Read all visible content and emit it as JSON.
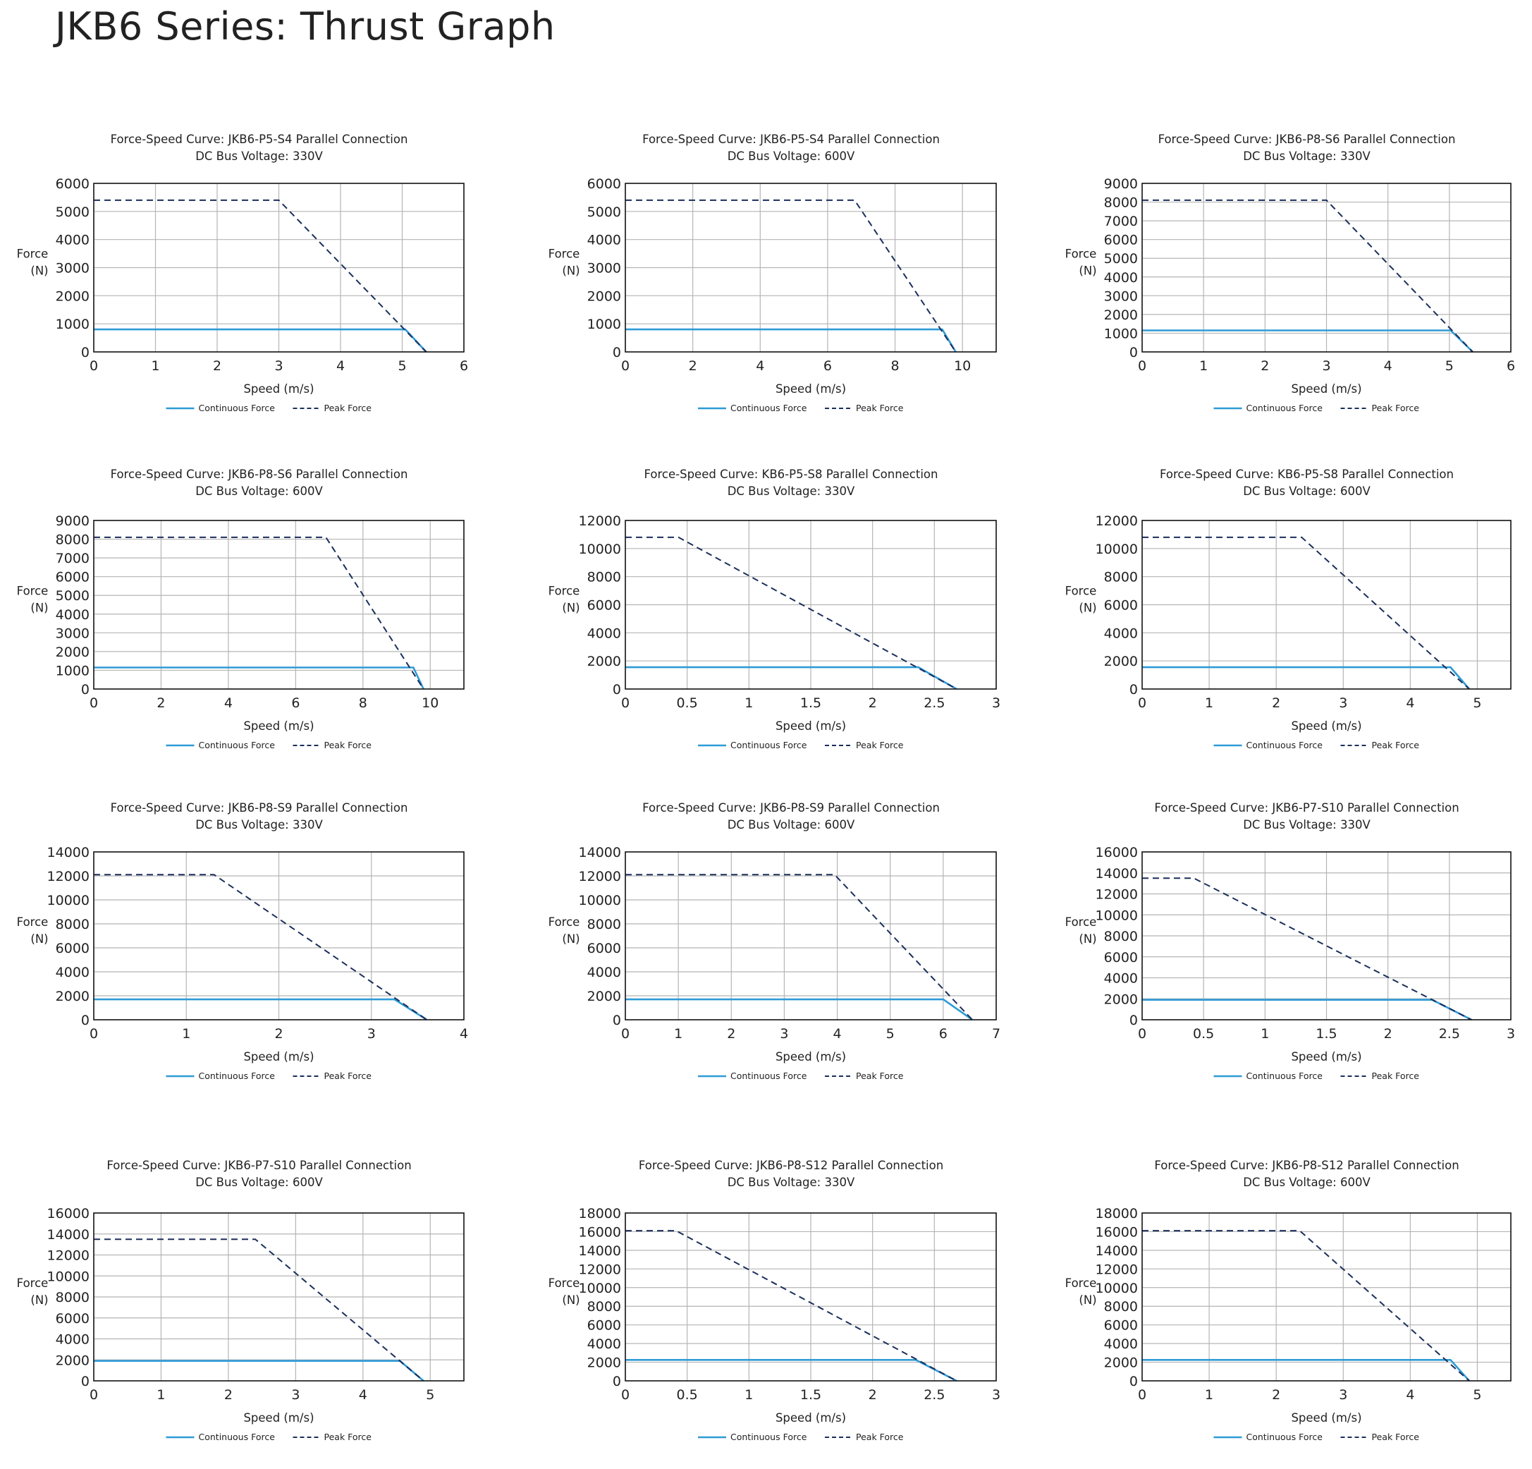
{
  "page": {
    "title": "JKB6 Series: Thrust Graph"
  },
  "colors": {
    "continuous": "#2e9bd6",
    "peak": "#1b2f5b",
    "grid": "#b5b5b5",
    "frame": "#111111"
  },
  "chart_data": [
    {
      "type": "line",
      "title": "Force-Speed Curve: JKB6-P5-S4 Parallel Connection",
      "subtitle": "DC Bus Voltage: 330V",
      "xlabel": "Speed (m/s)",
      "ylabel": "Force (N)",
      "xlim": [
        0,
        6
      ],
      "ylim": [
        0,
        6000
      ],
      "xticks": [
        "0",
        "1",
        "2",
        "3",
        "4",
        "5",
        "6"
      ],
      "yticks": [
        "0",
        "1000",
        "2000",
        "3000",
        "4000",
        "5000",
        "6000"
      ],
      "grid": true,
      "legend": "bottom",
      "series": [
        {
          "name": "Continuous Force",
          "style": "solid",
          "x": [
            0,
            5.05,
            5.39
          ],
          "y": [
            800,
            800,
            0
          ]
        },
        {
          "name": "Peak Force",
          "style": "dashed",
          "x": [
            0,
            3.0,
            5.39
          ],
          "y": [
            5400,
            5400,
            0
          ]
        }
      ]
    },
    {
      "type": "line",
      "title": "Force-Speed Curve: JKB6-P5-S4 Parallel Connection",
      "subtitle": "DC Bus Voltage: 600V",
      "xlabel": "Speed (m/s)",
      "ylabel": "Force (N)",
      "xlim": [
        0,
        11
      ],
      "ylim": [
        0,
        6000
      ],
      "xticks": [
        "0",
        "2",
        "4",
        "6",
        "8",
        "10"
      ],
      "yticks": [
        "0",
        "1000",
        "2000",
        "3000",
        "4000",
        "5000",
        "6000"
      ],
      "grid": true,
      "legend": "bottom",
      "series": [
        {
          "name": "Continuous Force",
          "style": "solid",
          "x": [
            0,
            9.4,
            9.8
          ],
          "y": [
            800,
            800,
            0
          ]
        },
        {
          "name": "Peak Force",
          "style": "dashed",
          "x": [
            0,
            6.8,
            9.8
          ],
          "y": [
            5400,
            5400,
            0
          ]
        }
      ]
    },
    {
      "type": "line",
      "title": "Force-Speed Curve: JKB6-P8-S6 Parallel Connection",
      "subtitle": "DC Bus Voltage: 330V",
      "xlabel": "Speed (m/s)",
      "ylabel": "Force (N)",
      "xlim": [
        0,
        6
      ],
      "ylim": [
        0,
        9000
      ],
      "xticks": [
        "0",
        "1",
        "2",
        "3",
        "4",
        "5",
        "6"
      ],
      "yticks": [
        "0",
        "1000",
        "2000",
        "3000",
        "4000",
        "5000",
        "6000",
        "7000",
        "8000",
        "9000"
      ],
      "grid": true,
      "legend": "bottom",
      "series": [
        {
          "name": "Continuous Force",
          "style": "solid",
          "x": [
            0,
            5.02,
            5.38
          ],
          "y": [
            1150,
            1150,
            0
          ]
        },
        {
          "name": "Peak Force",
          "style": "dashed",
          "x": [
            0,
            3.0,
            5.38
          ],
          "y": [
            8100,
            8100,
            0
          ]
        }
      ]
    },
    {
      "type": "line",
      "title": "Force-Speed Curve: JKB6-P8-S6 Parallel Connection",
      "subtitle": "DC Bus Voltage: 600V",
      "xlabel": "Speed (m/s)",
      "ylabel": "Force (N)",
      "xlim": [
        0,
        11
      ],
      "ylim": [
        0,
        9000
      ],
      "xticks": [
        "0",
        "2",
        "4",
        "6",
        "8",
        "10"
      ],
      "yticks": [
        "0",
        "1000",
        "2000",
        "3000",
        "4000",
        "5000",
        "6000",
        "7000",
        "8000",
        "9000"
      ],
      "grid": true,
      "legend": "bottom",
      "series": [
        {
          "name": "Continuous Force",
          "style": "solid",
          "x": [
            0,
            9.5,
            9.8
          ],
          "y": [
            1150,
            1150,
            0
          ]
        },
        {
          "name": "Peak Force",
          "style": "dashed",
          "x": [
            0,
            6.9,
            9.8
          ],
          "y": [
            8100,
            8100,
            0
          ]
        }
      ]
    },
    {
      "type": "line",
      "title": "Force-Speed Curve: KB6-P5-S8 Parallel Connection",
      "subtitle": "DC Bus Voltage: 330V",
      "xlabel": "Speed (m/s)",
      "ylabel": "Force (N)",
      "xlim": [
        0,
        3
      ],
      "ylim": [
        0,
        12000
      ],
      "xticks": [
        "0",
        "0.5",
        "1",
        "1.5",
        "2",
        "2.5",
        "3"
      ],
      "yticks": [
        "0",
        "2000",
        "4000",
        "6000",
        "8000",
        "10000",
        "12000"
      ],
      "grid": true,
      "legend": "bottom",
      "series": [
        {
          "name": "Continuous Force",
          "style": "solid",
          "x": [
            0,
            2.37,
            2.68
          ],
          "y": [
            1550,
            1550,
            0
          ]
        },
        {
          "name": "Peak Force",
          "style": "dashed",
          "x": [
            0,
            0.43,
            2.68
          ],
          "y": [
            10800,
            10800,
            0
          ]
        }
      ]
    },
    {
      "type": "line",
      "title": "Force-Speed Curve: KB6-P5-S8 Parallel Connection",
      "subtitle": "DC Bus Voltage: 600V",
      "xlabel": "Speed (m/s)",
      "ylabel": "Force (N)",
      "xlim": [
        0,
        5.5
      ],
      "ylim": [
        0,
        12000
      ],
      "xticks": [
        "0",
        "1",
        "2",
        "3",
        "4",
        "5"
      ],
      "yticks": [
        "0",
        "2000",
        "4000",
        "6000",
        "8000",
        "10000",
        "12000"
      ],
      "grid": true,
      "legend": "bottom",
      "series": [
        {
          "name": "Continuous Force",
          "style": "solid",
          "x": [
            0,
            4.6,
            4.88
          ],
          "y": [
            1550,
            1550,
            0
          ]
        },
        {
          "name": "Peak Force",
          "style": "dashed",
          "x": [
            0,
            2.38,
            4.88
          ],
          "y": [
            10800,
            10800,
            0
          ]
        }
      ]
    },
    {
      "type": "line",
      "title": "Force-Speed Curve: JKB6-P8-S9 Parallel Connection",
      "subtitle": "DC Bus Voltage: 330V",
      "xlabel": "Speed (m/s)",
      "ylabel": "Force (N)",
      "xlim": [
        0,
        4
      ],
      "ylim": [
        0,
        14000
      ],
      "xticks": [
        "0",
        "1",
        "2",
        "3",
        "4"
      ],
      "yticks": [
        "0",
        "2000",
        "4000",
        "6000",
        "8000",
        "10000",
        "12000",
        "14000"
      ],
      "grid": true,
      "legend": "bottom",
      "series": [
        {
          "name": "Continuous Force",
          "style": "solid",
          "x": [
            0,
            3.25,
            3.6
          ],
          "y": [
            1700,
            1700,
            0
          ]
        },
        {
          "name": "Peak Force",
          "style": "dashed",
          "x": [
            0,
            1.3,
            3.6
          ],
          "y": [
            12100,
            12100,
            0
          ]
        }
      ]
    },
    {
      "type": "line",
      "title": "Force-Speed Curve: JKB6-P8-S9 Parallel Connection",
      "subtitle": "DC Bus Voltage: 600V",
      "xlabel": "Speed (m/s)",
      "ylabel": "Force (N)",
      "xlim": [
        0,
        7
      ],
      "ylim": [
        0,
        14000
      ],
      "xticks": [
        "0",
        "1",
        "2",
        "3",
        "4",
        "5",
        "6",
        "7"
      ],
      "yticks": [
        "0",
        "2000",
        "4000",
        "6000",
        "8000",
        "10000",
        "12000",
        "14000"
      ],
      "grid": true,
      "legend": "bottom",
      "series": [
        {
          "name": "Continuous Force",
          "style": "solid",
          "x": [
            0,
            6.0,
            6.55
          ],
          "y": [
            1700,
            1700,
            0
          ]
        },
        {
          "name": "Peak Force",
          "style": "dashed",
          "x": [
            0,
            3.95,
            6.55
          ],
          "y": [
            12100,
            12100,
            0
          ]
        }
      ]
    },
    {
      "type": "line",
      "title": "Force-Speed Curve: JKB6-P7-S10 Parallel Connection",
      "subtitle": "DC Bus Voltage: 330V",
      "xlabel": "Speed (m/s)",
      "ylabel": "Force (N)",
      "xlim": [
        0,
        3
      ],
      "ylim": [
        0,
        16000
      ],
      "xticks": [
        "0",
        "0.5",
        "1",
        "1.5",
        "2",
        "2.5",
        "3"
      ],
      "yticks": [
        "0",
        "2000",
        "4000",
        "6000",
        "8000",
        "10000",
        "12000",
        "14000",
        "16000"
      ],
      "grid": true,
      "legend": "bottom",
      "series": [
        {
          "name": "Continuous Force",
          "style": "solid",
          "x": [
            0,
            2.36,
            2.68
          ],
          "y": [
            1900,
            1900,
            0
          ]
        },
        {
          "name": "Peak Force",
          "style": "dashed",
          "x": [
            0,
            0.42,
            2.68
          ],
          "y": [
            13500,
            13500,
            0
          ]
        }
      ]
    },
    {
      "type": "line",
      "title": "Force-Speed Curve: JKB6-P7-S10 Parallel Connection",
      "subtitle": "DC Bus Voltage: 600V",
      "xlabel": "Speed (m/s)",
      "ylabel": "Force (N)",
      "xlim": [
        0,
        5.5
      ],
      "ylim": [
        0,
        16000
      ],
      "xticks": [
        "0",
        "1",
        "2",
        "3",
        "4",
        "5"
      ],
      "yticks": [
        "0",
        "2000",
        "4000",
        "6000",
        "8000",
        "10000",
        "12000",
        "14000",
        "16000"
      ],
      "grid": true,
      "legend": "bottom",
      "series": [
        {
          "name": "Continuous Force",
          "style": "solid",
          "x": [
            0,
            4.55,
            4.9
          ],
          "y": [
            1900,
            1900,
            0
          ]
        },
        {
          "name": "Peak Force",
          "style": "dashed",
          "x": [
            0,
            2.4,
            4.9
          ],
          "y": [
            13500,
            13500,
            0
          ]
        }
      ]
    },
    {
      "type": "line",
      "title": "Force-Speed Curve: JKB6-P8-S12 Parallel Connection",
      "subtitle": "DC Bus Voltage: 330V",
      "xlabel": "Speed (m/s)",
      "ylabel": "Force (N)",
      "xlim": [
        0,
        3
      ],
      "ylim": [
        0,
        18000
      ],
      "xticks": [
        "0",
        "0.5",
        "1",
        "1.5",
        "2",
        "2.5",
        "3"
      ],
      "yticks": [
        "0",
        "2000",
        "4000",
        "6000",
        "8000",
        "10000",
        "12000",
        "14000",
        "16000",
        "18000"
      ],
      "grid": true,
      "legend": "bottom",
      "series": [
        {
          "name": "Continuous Force",
          "style": "solid",
          "x": [
            0,
            2.35,
            2.68
          ],
          "y": [
            2250,
            2250,
            0
          ]
        },
        {
          "name": "Peak Force",
          "style": "dashed",
          "x": [
            0,
            0.41,
            2.68
          ],
          "y": [
            16100,
            16100,
            0
          ]
        }
      ]
    },
    {
      "type": "line",
      "title": "Force-Speed Curve: JKB6-P8-S12 Parallel Connection",
      "subtitle": "DC Bus Voltage: 600V",
      "xlabel": "Speed (m/s)",
      "ylabel": "Force (N)",
      "xlim": [
        0,
        5.5
      ],
      "ylim": [
        0,
        18000
      ],
      "xticks": [
        "0",
        "1",
        "2",
        "3",
        "4",
        "5"
      ],
      "yticks": [
        "0",
        "2000",
        "4000",
        "6000",
        "8000",
        "10000",
        "12000",
        "14000",
        "16000",
        "18000"
      ],
      "grid": true,
      "legend": "bottom",
      "series": [
        {
          "name": "Continuous Force",
          "style": "solid",
          "x": [
            0,
            4.6,
            4.88
          ],
          "y": [
            2250,
            2250,
            0
          ]
        },
        {
          "name": "Peak Force",
          "style": "dashed",
          "x": [
            0,
            2.35,
            4.88
          ],
          "y": [
            16100,
            16100,
            0
          ]
        }
      ]
    }
  ]
}
